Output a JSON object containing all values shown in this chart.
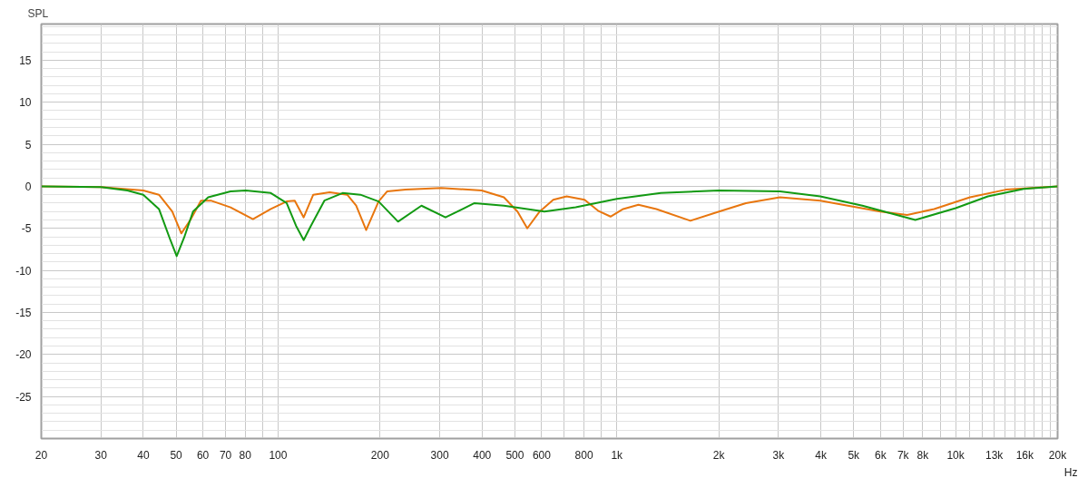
{
  "chart_data": {
    "type": "line",
    "ylabel": "SPL",
    "log": "x",
    "xlim": [
      20,
      20000
    ],
    "ylim": [
      -30,
      19.3
    ],
    "xticks": [
      20,
      30,
      40,
      50,
      60,
      70,
      80,
      {
        "value": 90,
        "label": null
      },
      100,
      200,
      300,
      400,
      500,
      600,
      {
        "value": 700,
        "label": null
      },
      800,
      {
        "value": 900,
        "label": null
      },
      {
        "value": 1000,
        "label": "1k"
      },
      {
        "value": 2000,
        "label": "2k"
      },
      {
        "value": 3000,
        "label": "3k"
      },
      {
        "value": 4000,
        "label": "4k"
      },
      {
        "value": 5000,
        "label": "5k"
      },
      {
        "value": 6000,
        "label": "6k"
      },
      {
        "value": 7000,
        "label": "7k"
      },
      {
        "value": 8000,
        "label": "8k"
      },
      {
        "value": 9000,
        "label": null
      },
      {
        "value": 10000,
        "label": "10k"
      },
      {
        "value": 11000,
        "label": null
      },
      {
        "value": 12000,
        "label": null
      },
      {
        "value": 13000,
        "label": "13k"
      },
      {
        "value": 14000,
        "label": null
      },
      {
        "value": 15000,
        "label": null
      },
      {
        "value": 16000,
        "label": "16k"
      },
      {
        "value": 17000,
        "label": null
      },
      {
        "value": 18000,
        "label": null
      },
      {
        "value": 19000,
        "label": null
      },
      {
        "value": 20000,
        "label": "20k"
      }
    ],
    "xlabel": "Hz",
    "yticks": [
      15,
      10,
      5,
      0,
      -5,
      -10,
      -15,
      -20,
      -25
    ],
    "grid": true,
    "marker": "none",
    "line_style": "solid",
    "series": [
      {
        "color": "#e8760e",
        "x": [
          20,
          30,
          40,
          44.5,
          48.7,
          51.8,
          55.1,
          59.2,
          63.3,
          72.4,
          84.3,
          95.2,
          106,
          112,
          119,
          127,
          142,
          160,
          170,
          182,
          198,
          210,
          238,
          303,
          399,
          464,
          509,
          544,
          592,
          649,
          711,
          803,
          880,
          958,
          1044,
          1158,
          1308,
          1648,
          2003,
          2404,
          3030,
          3986,
          5995,
          7195,
          8640,
          11024,
          14068,
          20000
        ],
        "values": [
          0,
          -0.1,
          -0.5,
          -1.0,
          -3.0,
          -5.6,
          -4.0,
          -1.7,
          -1.7,
          -2.5,
          -3.9,
          -2.7,
          -1.8,
          -1.7,
          -3.7,
          -1.0,
          -0.7,
          -1.0,
          -2.3,
          -5.2,
          -1.8,
          -0.6,
          -0.4,
          -0.2,
          -0.5,
          -1.3,
          -3.0,
          -5.0,
          -3.0,
          -1.6,
          -1.2,
          -1.6,
          -2.9,
          -3.6,
          -2.7,
          -2.2,
          -2.7,
          -4.1,
          -3.0,
          -2.0,
          -1.3,
          -1.7,
          -3.0,
          -3.4,
          -2.7,
          -1.3,
          -0.4,
          0
        ]
      },
      {
        "color": "#139a13",
        "x": [
          20,
          30,
          35.9,
          40,
          44.5,
          48.1,
          50.2,
          52.8,
          56.1,
          62.2,
          72.4,
          80.3,
          95.2,
          106,
          113,
          119,
          125,
          137,
          155,
          175,
          198,
          226,
          265,
          312,
          380,
          464,
          611,
          756,
          1000,
          1348,
          2003,
          3030,
          3986,
          5307,
          7603,
          10000,
          12452,
          15890,
          20000
        ],
        "values": [
          0,
          -0.1,
          -0.5,
          -1.0,
          -2.7,
          -6.4,
          -8.3,
          -6.1,
          -3.0,
          -1.3,
          -0.6,
          -0.5,
          -0.8,
          -2.0,
          -4.7,
          -6.4,
          -4.7,
          -1.7,
          -0.8,
          -1.0,
          -1.8,
          -4.2,
          -2.3,
          -3.7,
          -2.0,
          -2.3,
          -3.0,
          -2.5,
          -1.5,
          -0.8,
          -0.5,
          -0.6,
          -1.2,
          -2.3,
          -4.0,
          -2.6,
          -1.2,
          -0.3,
          0
        ]
      }
    ]
  }
}
